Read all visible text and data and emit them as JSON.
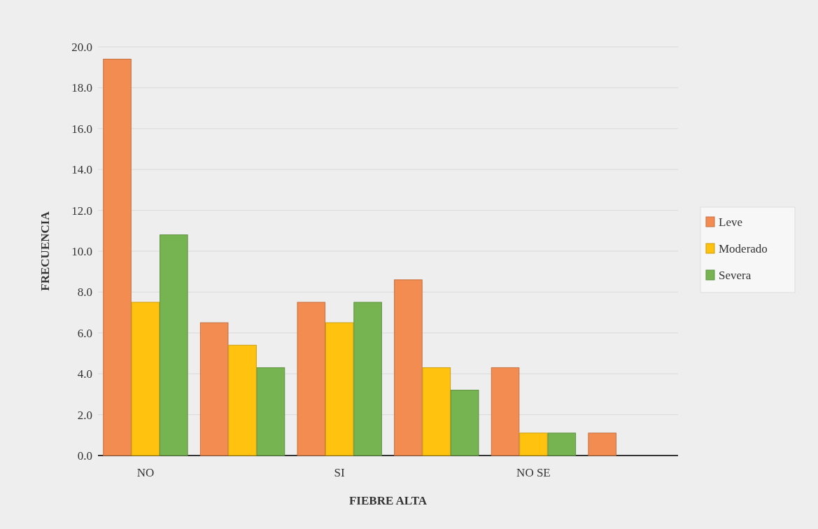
{
  "chart_data": {
    "type": "bar",
    "xlabel": "FIEBRE ALTA",
    "ylabel": "FRECUENCIA",
    "categories": [
      "NO",
      null,
      "SI",
      null,
      "NO SE",
      null
    ],
    "series": [
      {
        "name": "Leve",
        "color": "#f28c50",
        "values": [
          19.4,
          6.5,
          7.5,
          8.6,
          4.3,
          1.1
        ]
      },
      {
        "name": "Moderado",
        "color": "#ffc20e",
        "values": [
          7.5,
          5.4,
          6.5,
          4.3,
          1.1,
          0
        ]
      },
      {
        "name": "Severa",
        "color": "#76b451",
        "values": [
          10.8,
          4.3,
          7.5,
          3.2,
          1.1,
          0
        ]
      }
    ],
    "ylim": [
      0,
      20
    ],
    "yticks": [
      {
        "value": 0,
        "label": "0.0"
      },
      {
        "value": 2,
        "label": "2.0"
      },
      {
        "value": 4,
        "label": "4.0"
      },
      {
        "value": 6,
        "label": "6.0"
      },
      {
        "value": 8,
        "label": "8.0"
      },
      {
        "value": 10,
        "label": "10.0"
      },
      {
        "value": 12,
        "label": "12.0"
      },
      {
        "value": 14,
        "label": "14.0"
      },
      {
        "value": 16,
        "label": "16.0"
      },
      {
        "value": 18,
        "label": "18.0"
      },
      {
        "value": 20,
        "label": "20.0"
      }
    ],
    "grid": "y",
    "legend": "right"
  }
}
